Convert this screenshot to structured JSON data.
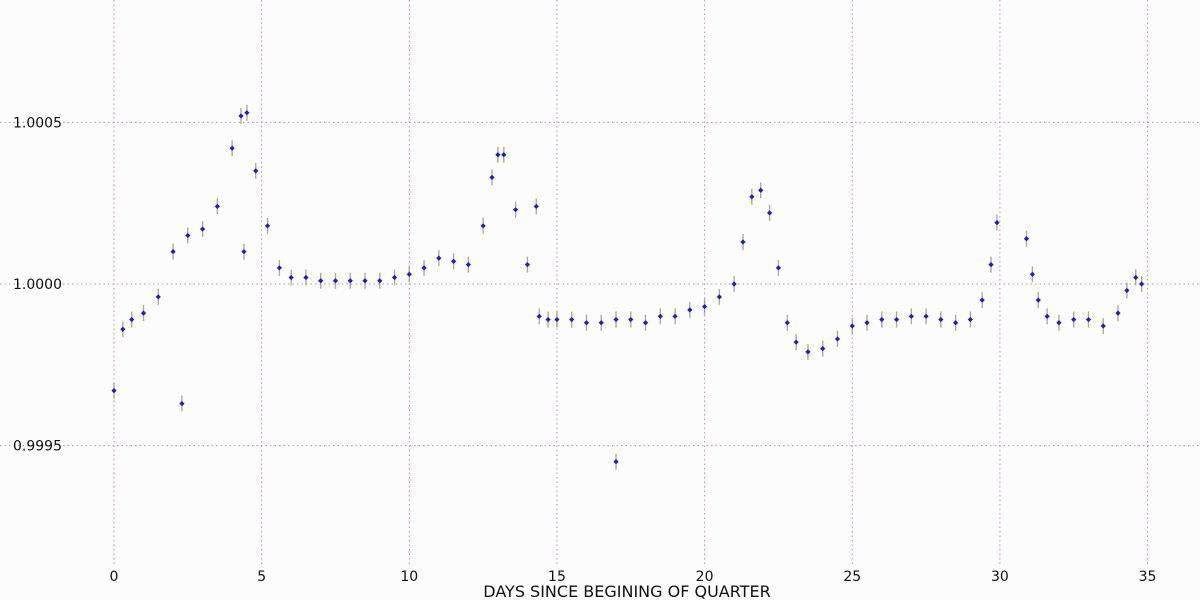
{
  "chart_data": {
    "type": "scatter",
    "title": "",
    "xlabel": "DAYS SINCE BEGINING OF QUARTER",
    "ylabel": "",
    "xlim": [
      -0.6,
      35.8
    ],
    "ylim": [
      0.99915,
      1.00085
    ],
    "xticks": [
      0,
      5,
      10,
      15,
      20,
      25,
      30,
      35
    ],
    "xtick_labels": [
      "0",
      "5",
      "10",
      "15",
      "20",
      "25",
      "30",
      "35"
    ],
    "yticks": [
      0.9995,
      1.0,
      1.0005
    ],
    "ytick_labels": [
      "0.9995",
      "1.0000",
      "1.0005"
    ],
    "grid": true,
    "legend": "none",
    "error_bars": true,
    "marker": "diamond",
    "colors": {
      "background": "#fdfcfd",
      "markers": "#1a1ad8",
      "error_bars": "#9a9a6a",
      "grid": "#b58cb8",
      "text": "#111111"
    },
    "series": [
      {
        "x": [
          0.0,
          0.3,
          0.6,
          1.0,
          1.5,
          2.0,
          2.5,
          3.0,
          3.5,
          4.0,
          4.3,
          4.5,
          4.8,
          5.2,
          5.6,
          6.0,
          6.5,
          7.0,
          7.5,
          8.0,
          8.5,
          9.0,
          9.5,
          10.0,
          10.5,
          11.0,
          11.5,
          12.0,
          12.5,
          12.8,
          13.0,
          13.2,
          13.6,
          14.0,
          14.4,
          14.7,
          15.0,
          15.5,
          16.0,
          16.5,
          17.0,
          17.5,
          18.0,
          18.5,
          19.0,
          19.5,
          20.0,
          20.5,
          21.0,
          21.3,
          21.6,
          21.9,
          22.2,
          22.5,
          22.8,
          23.1,
          23.5,
          24.0,
          24.5,
          25.0,
          25.5,
          26.0,
          26.5,
          27.0,
          27.5,
          28.0,
          28.5,
          29.0,
          29.4,
          29.7,
          29.9,
          30.9,
          31.1,
          31.3,
          31.6,
          32.0,
          32.5,
          33.0,
          33.5,
          34.0,
          34.3,
          34.6,
          34.8,
          2.3,
          4.4,
          14.3,
          17.0
        ],
        "y": [
          0.99967,
          0.99986,
          0.99989,
          0.99991,
          0.99996,
          1.0001,
          1.00015,
          1.00017,
          1.00024,
          1.00042,
          1.00052,
          1.00053,
          1.00035,
          1.00018,
          1.00005,
          1.00002,
          1.00002,
          1.00001,
          1.00001,
          1.00001,
          1.00001,
          1.00001,
          1.00002,
          1.00003,
          1.00005,
          1.00008,
          1.00007,
          1.00006,
          1.00018,
          1.00033,
          1.0004,
          1.0004,
          1.00023,
          1.00006,
          0.9999,
          0.99989,
          0.99989,
          0.99989,
          0.99988,
          0.99988,
          0.99989,
          0.99989,
          0.99988,
          0.9999,
          0.9999,
          0.99992,
          0.99993,
          0.99996,
          1.0,
          1.00013,
          1.00027,
          1.00029,
          1.00022,
          1.00005,
          0.99988,
          0.99982,
          0.99979,
          0.9998,
          0.99983,
          0.99987,
          0.99988,
          0.99989,
          0.99989,
          0.9999,
          0.9999,
          0.99989,
          0.99988,
          0.99989,
          0.99995,
          1.00006,
          1.00019,
          1.00014,
          1.00003,
          0.99995,
          0.9999,
          0.99988,
          0.99989,
          0.99989,
          0.99987,
          0.99991,
          0.99998,
          1.00002,
          1.0,
          0.99963,
          1.0001,
          1.00024,
          0.99945
        ]
      }
    ]
  }
}
